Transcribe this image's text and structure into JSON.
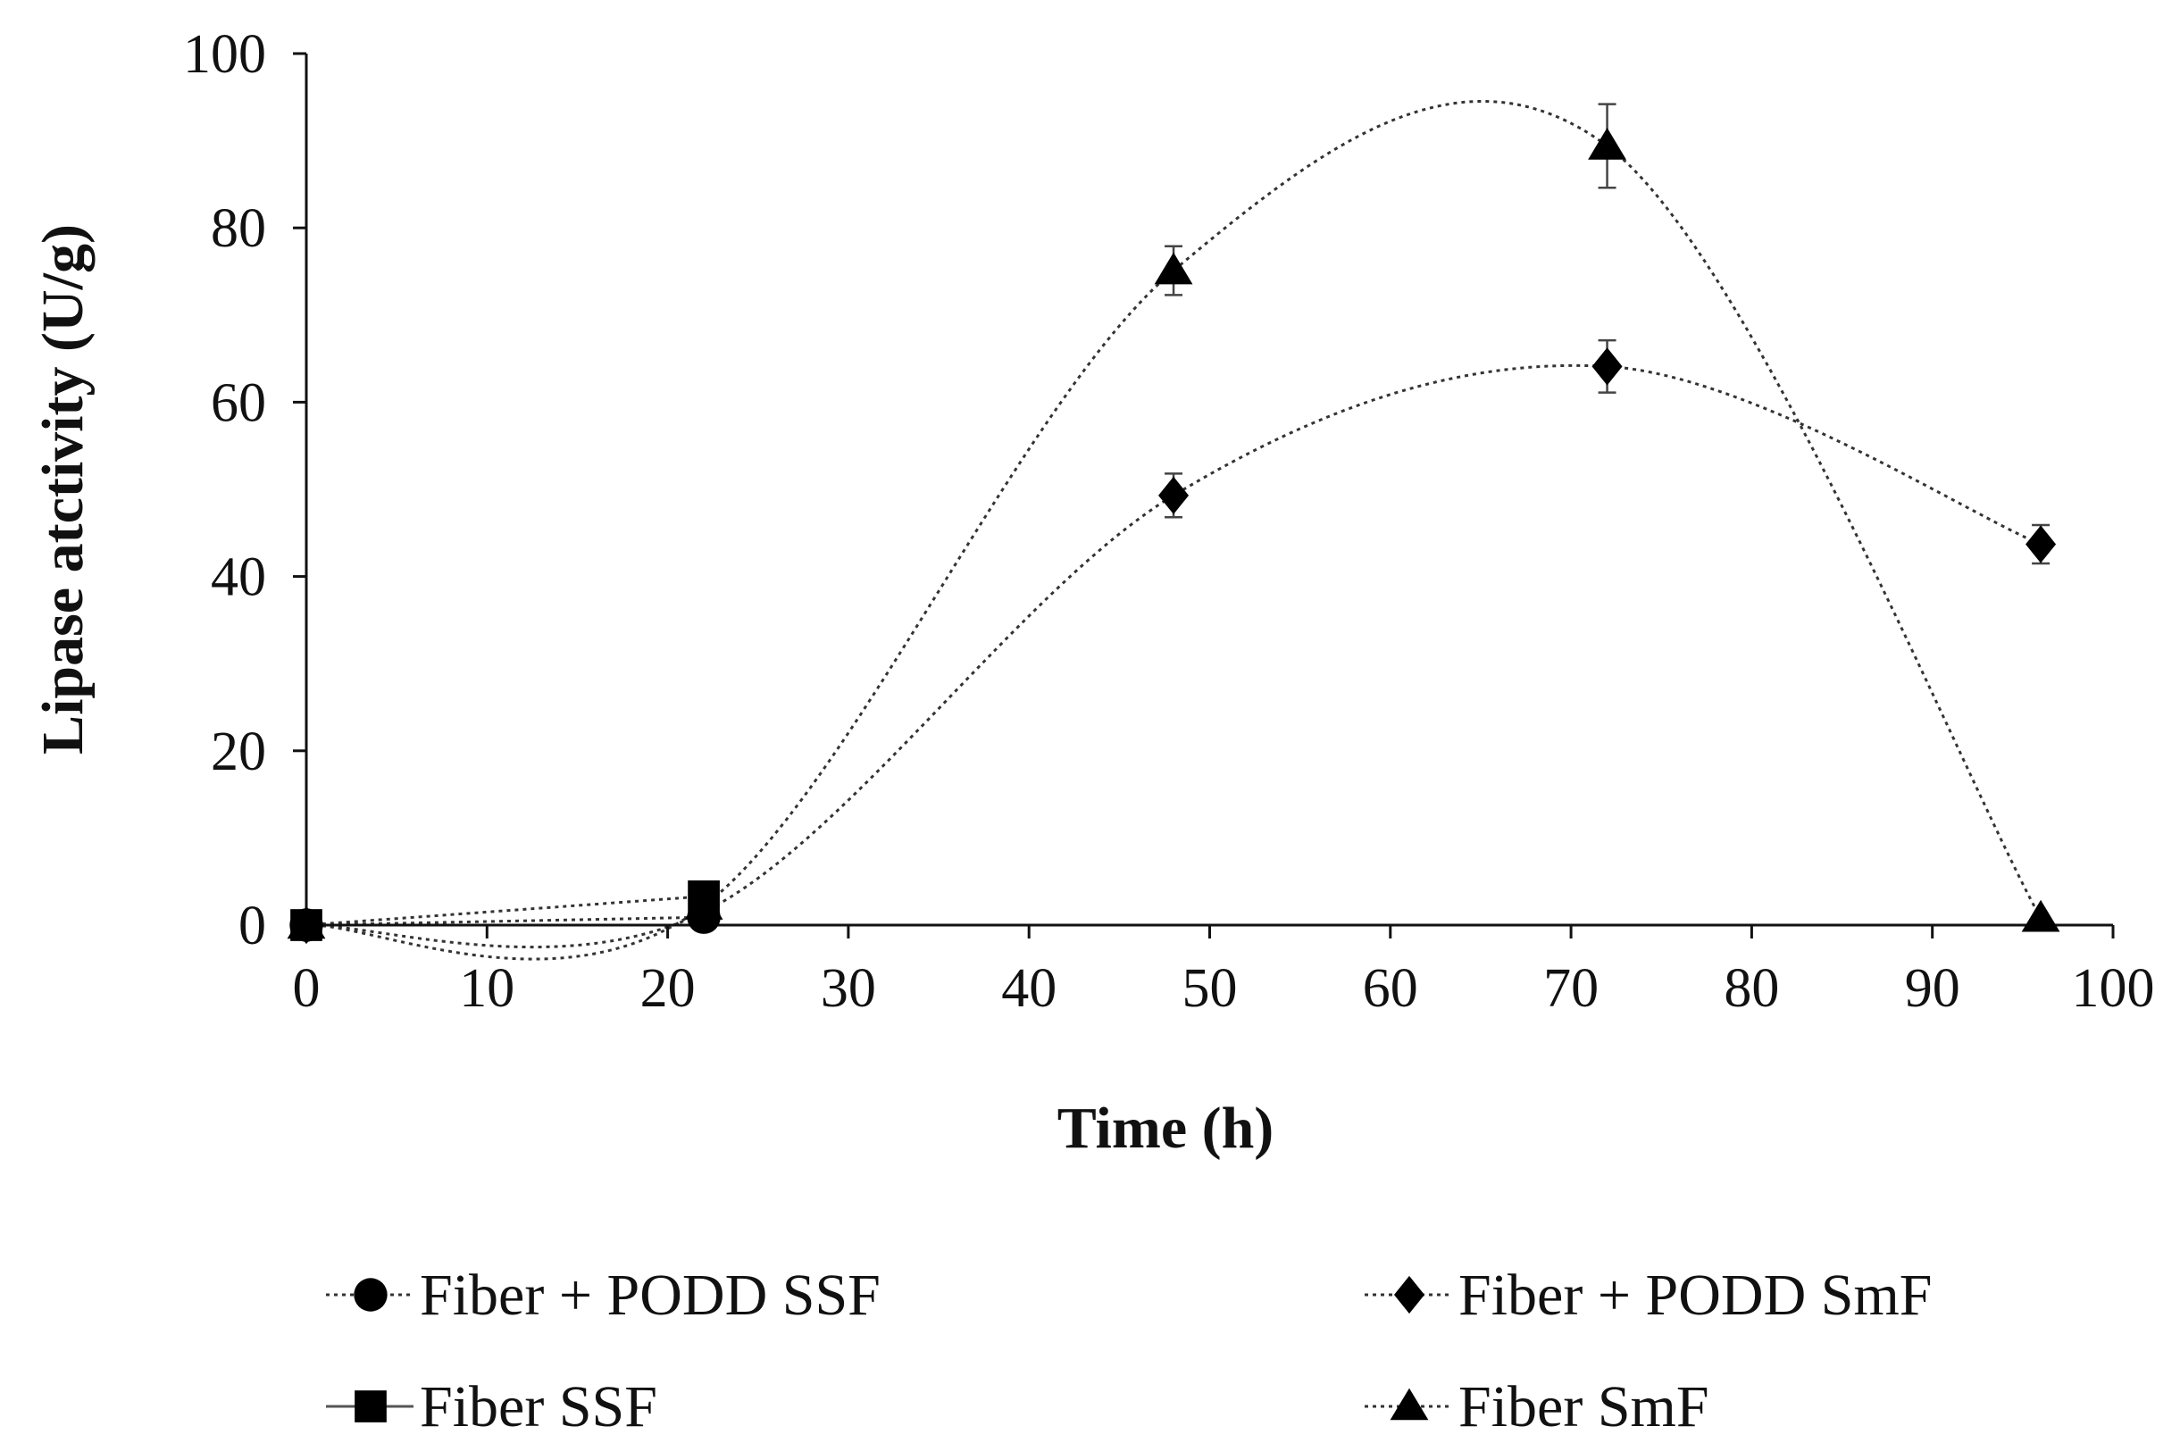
{
  "chart_data": {
    "type": "scatter",
    "title": "",
    "xlabel": "Time (h)",
    "ylabel": "Lipase atctivity (U/g)",
    "xlim": [
      0,
      100
    ],
    "ylim": [
      0,
      100
    ],
    "xticks": [
      0,
      10,
      20,
      30,
      40,
      50,
      60,
      70,
      80,
      90,
      100
    ],
    "yticks": [
      0,
      20,
      40,
      60,
      80,
      100
    ],
    "grid": false,
    "legend_position": "bottom",
    "series": [
      {
        "name": "Fiber + PODD SSF",
        "marker": "circle",
        "line": "dotted",
        "x": [
          0,
          22
        ],
        "y": [
          0,
          0.9
        ],
        "err": [
          0,
          0
        ]
      },
      {
        "name": "Fiber + PODD SmF",
        "marker": "diamond",
        "line": "dotted",
        "x": [
          0,
          22,
          48,
          72,
          96
        ],
        "y": [
          0,
          1.5,
          49.3,
          64.1,
          43.7
        ],
        "err": [
          0,
          0,
          2.5,
          3.0,
          2.2
        ]
      },
      {
        "name": "Fiber SSF",
        "marker": "square",
        "line": "solid",
        "x": [
          0,
          22
        ],
        "y": [
          0,
          3.3
        ],
        "err": [
          0,
          0
        ]
      },
      {
        "name": "Fiber SmF",
        "marker": "triangle",
        "line": "dotted",
        "x": [
          0,
          22,
          48,
          72,
          96
        ],
        "y": [
          0,
          2.2,
          75.1,
          89.4,
          0.8
        ],
        "err": [
          0,
          0,
          2.8,
          4.8,
          0
        ]
      }
    ]
  }
}
